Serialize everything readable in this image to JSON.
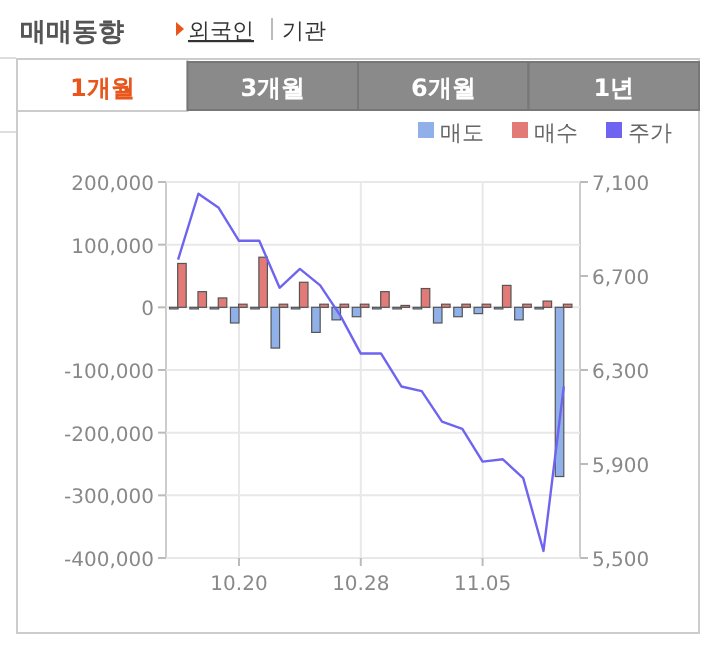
{
  "chart_data": {
    "type": "bar",
    "title": "매매동향",
    "annotations": [
      "외국인",
      "기관",
      "1개월",
      "3개월",
      "6개월",
      "1년"
    ],
    "categories": [
      null,
      null,
      null,
      "10.20",
      null,
      null,
      null,
      null,
      null,
      "10.28",
      null,
      null,
      null,
      null,
      null,
      "11.05",
      null,
      null,
      null,
      null
    ],
    "series": [
      {
        "name": "매도",
        "color": "#8fb0e8",
        "values": [
          0,
          0,
          0,
          -25000,
          0,
          -65000,
          0,
          -40000,
          -20000,
          -15000,
          0,
          0,
          0,
          -25000,
          -15000,
          -10000,
          0,
          -20000,
          0,
          -270000
        ]
      },
      {
        "name": "매수",
        "color": "#e27a78",
        "values": [
          70000,
          25000,
          15000,
          5000,
          80000,
          5000,
          40000,
          5000,
          5000,
          5000,
          25000,
          3000,
          30000,
          5000,
          5000,
          5000,
          35000,
          5000,
          10000,
          5000
        ]
      },
      {
        "name": "주가",
        "type": "line",
        "axis": "y2",
        "color": "#6f64f0",
        "values": [
          6770,
          7050,
          6990,
          6850,
          6850,
          6650,
          6730,
          6660,
          6530,
          6370,
          6370,
          6230,
          6210,
          6080,
          6050,
          5910,
          5920,
          5840,
          5530,
          6230
        ]
      }
    ],
    "ylim": [
      -400000,
      200000
    ],
    "yticks": [
      {
        "value": -400000,
        "label": "-400,000"
      },
      {
        "value": -300000,
        "label": "-300,000"
      },
      {
        "value": -200000,
        "label": "-200,000"
      },
      {
        "value": -100000,
        "label": "-100,000"
      },
      0,
      {
        "value": 100000,
        "label": "100,000"
      },
      {
        "value": 200000,
        "label": "200,000"
      }
    ],
    "y2lim": [
      5500,
      7100
    ],
    "y2ticks": [
      {
        "value": 5500,
        "label": "5,500"
      },
      {
        "value": 5900,
        "label": "5,900"
      },
      {
        "value": 6300,
        "label": "6,300"
      },
      {
        "value": 6700,
        "label": "6,700"
      },
      {
        "value": 7100,
        "label": "7,100"
      }
    ],
    "grid": true,
    "legend": "top right"
  }
}
